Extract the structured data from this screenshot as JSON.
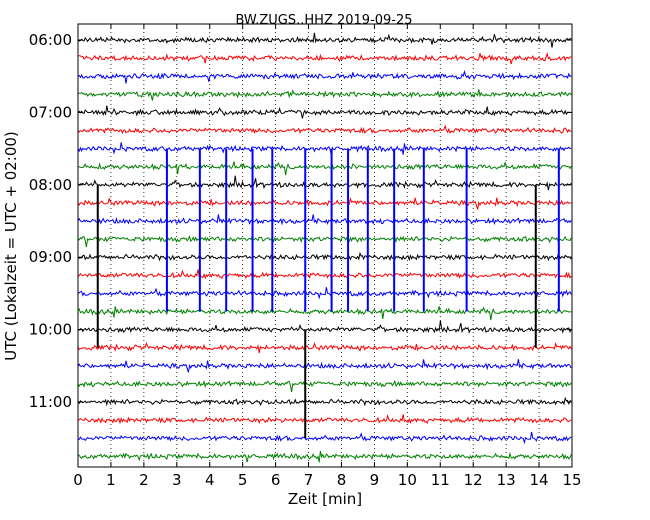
{
  "chart_data": {
    "type": "line",
    "title": "BW.ZUGS..HHZ 2019-09-25",
    "xlabel": "Zeit  [min]",
    "ylabel": "UTC (Lokalzeit = UTC + 02:00)",
    "xlim": [
      0,
      15
    ],
    "x_ticks": [
      "0",
      "1",
      "2",
      "3",
      "4",
      "5",
      "6",
      "7",
      "8",
      "9",
      "10",
      "11",
      "12",
      "13",
      "14",
      "15"
    ],
    "y_tick_labels": [
      "06:00",
      "07:00",
      "08:00",
      "09:00",
      "10:00",
      "11:00"
    ],
    "grid": "vertical dotted at each minute",
    "trace_interval_minutes": 15,
    "trace_start": "06:00",
    "trace_colors": [
      "#000000",
      "#ff0000",
      "#0000ff",
      "#008000"
    ],
    "trace_count": 24,
    "events": [
      {
        "trace": 6,
        "minute": 2.7,
        "length_rows": 9
      },
      {
        "trace": 6,
        "minute": 3.7,
        "length_rows": 9
      },
      {
        "trace": 6,
        "minute": 4.5,
        "length_rows": 9
      },
      {
        "trace": 6,
        "minute": 5.3,
        "length_rows": 9
      },
      {
        "trace": 6,
        "minute": 5.9,
        "length_rows": 9
      },
      {
        "trace": 6,
        "minute": 6.9,
        "length_rows": 9
      },
      {
        "trace": 6,
        "minute": 7.7,
        "length_rows": 9
      },
      {
        "trace": 6,
        "minute": 8.2,
        "length_rows": 9
      },
      {
        "trace": 6,
        "minute": 8.8,
        "length_rows": 9
      },
      {
        "trace": 6,
        "minute": 9.6,
        "length_rows": 9
      },
      {
        "trace": 6,
        "minute": 10.5,
        "length_rows": 9
      },
      {
        "trace": 6,
        "minute": 11.8,
        "length_rows": 9
      },
      {
        "trace": 6,
        "minute": 14.6,
        "length_rows": 9
      },
      {
        "trace": 8,
        "minute": 0.6,
        "length_rows": 9
      },
      {
        "trace": 8,
        "minute": 13.9,
        "length_rows": 9
      },
      {
        "trace": 16,
        "minute": 6.9,
        "length_rows": 6
      }
    ]
  }
}
